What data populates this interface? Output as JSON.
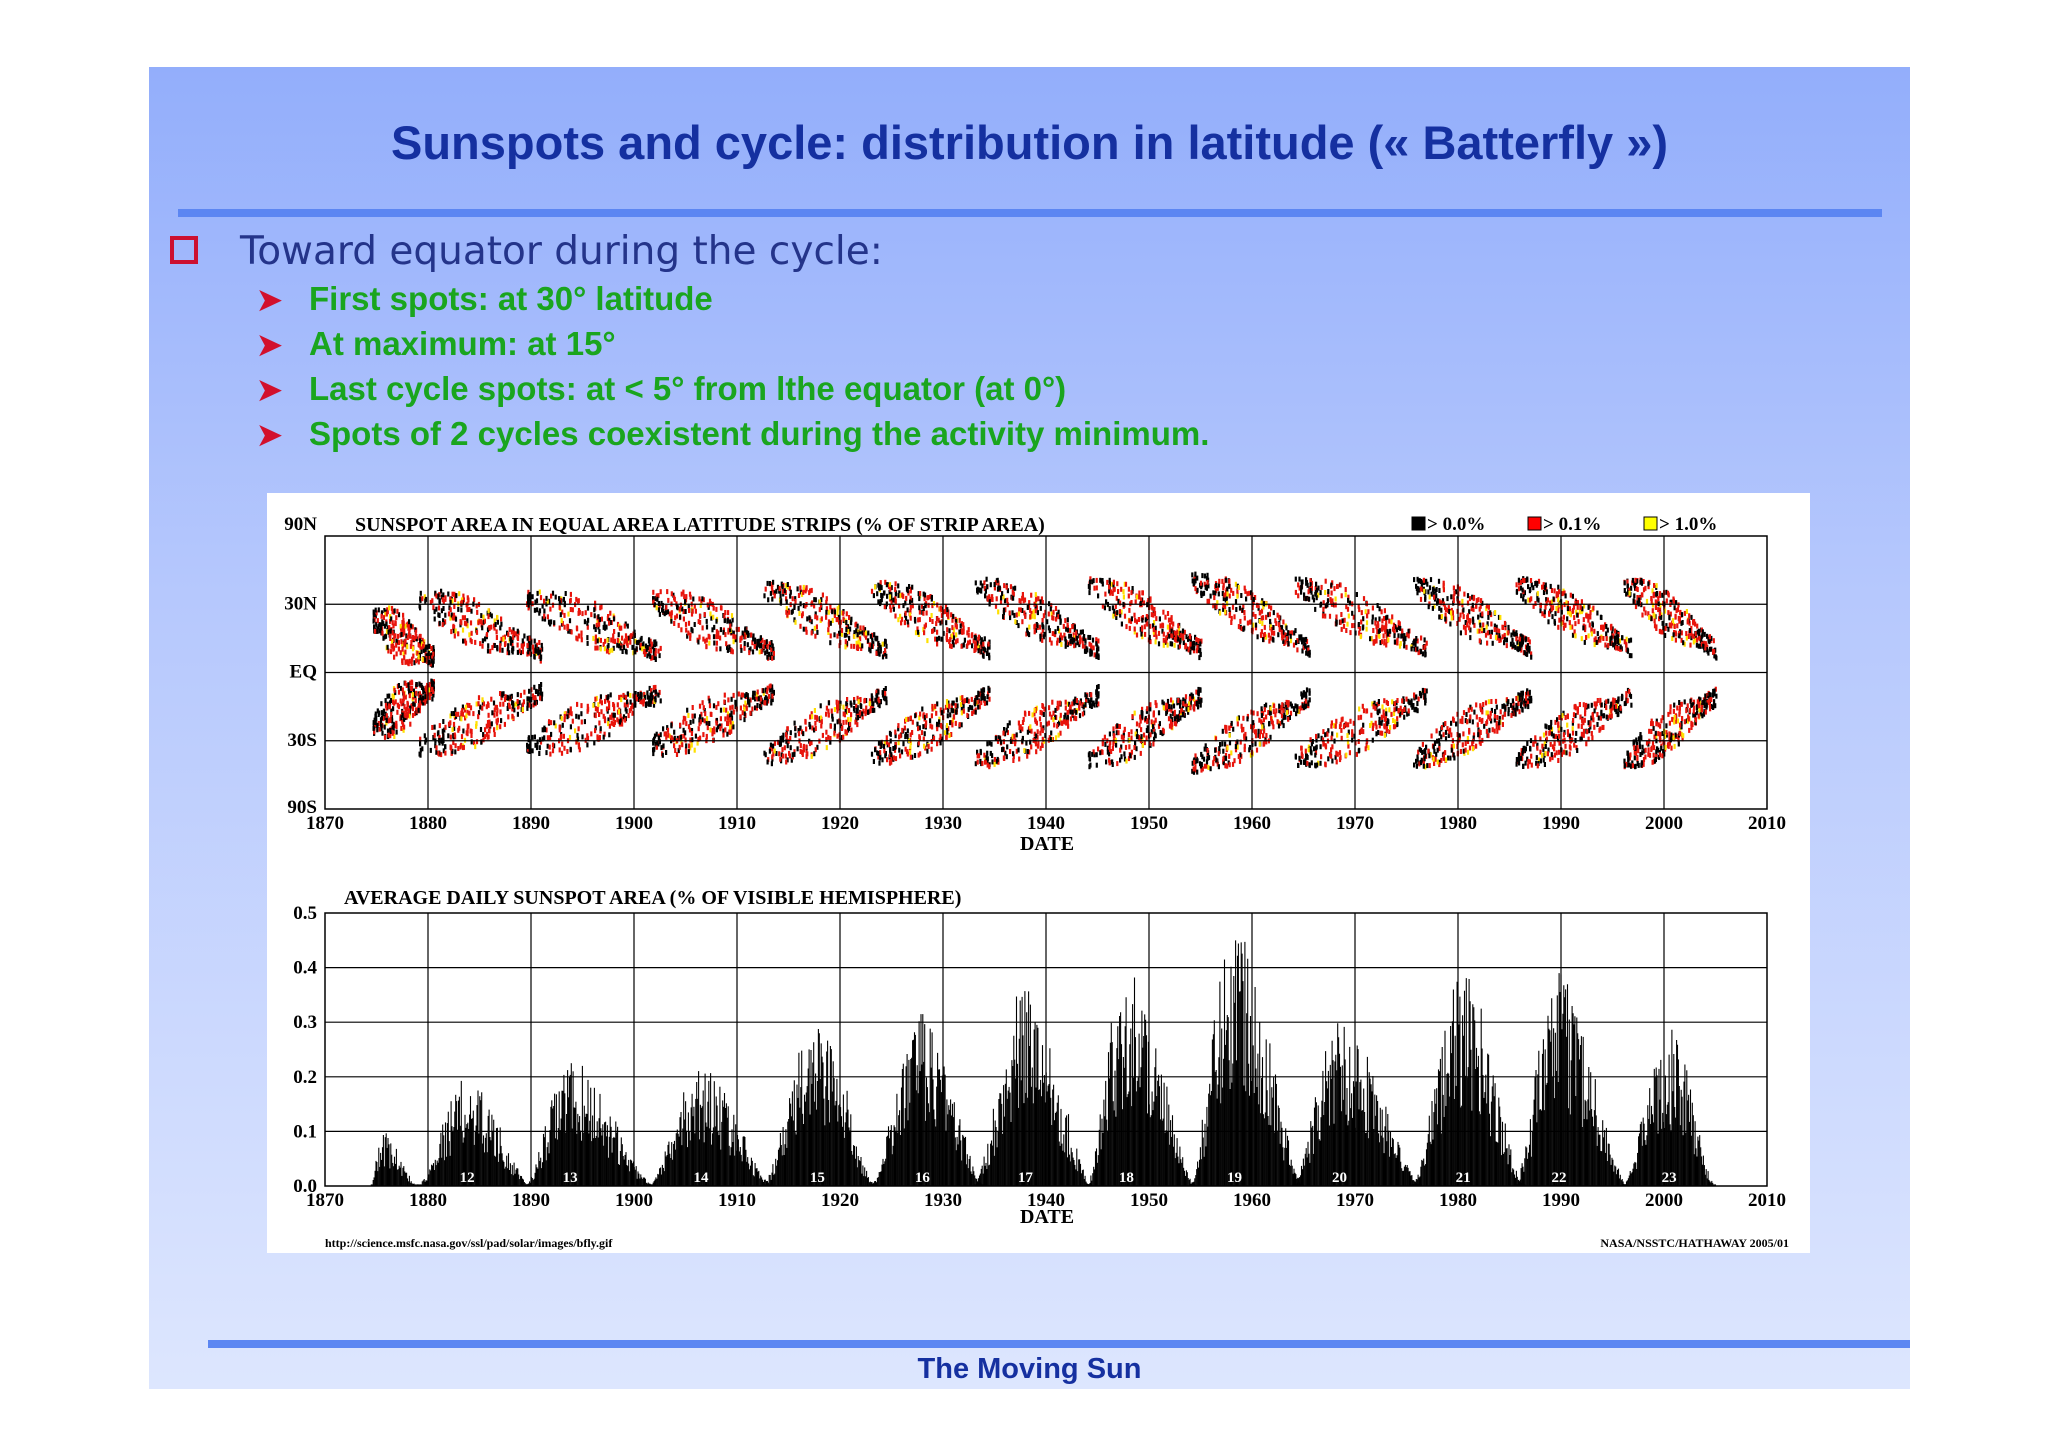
{
  "slide": {
    "title": "Sunspots and cycle: distribution in latitude (« Batterfly »)",
    "bullet": "Toward equator during the cycle:",
    "sub_bullets": [
      "First spots:  at  30° latitude",
      "At maximum: at 15°",
      "Last cycle spots:  at < 5° from lthe equator (at 0°)",
      "Spots of 2 cycles coexistent during the activity minimum."
    ],
    "footer": "The Moving Sun",
    "colors": {
      "title": "#1530a0",
      "sub_bullet": "#1aa51e",
      "bullet_marker": "#d2102c",
      "rule": "#5c86f2"
    }
  },
  "chart_data": [
    {
      "type": "heatmap",
      "title": "SUNSPOT AREA IN EQUAL AREA LATITUDE STRIPS (% OF STRIP AREA)",
      "xlabel": "DATE",
      "xlim": [
        1870,
        2010
      ],
      "x_ticks": [
        "1870",
        "1880",
        "1890",
        "1900",
        "1910",
        "1920",
        "1930",
        "1940",
        "1950",
        "1960",
        "1970",
        "1980",
        "1990",
        "2000",
        "2010"
      ],
      "y_ticks": [
        "90N",
        "30N",
        "EQ",
        "30S",
        "90S"
      ],
      "legend": [
        {
          "label": "> 0.0%",
          "color": "#000000"
        },
        {
          "label": "> 0.1%",
          "color": "#ff0000"
        },
        {
          "label": "> 1.0%",
          "color": "#ffff00"
        }
      ],
      "legend_position": "top-right",
      "grid": true,
      "cycles": [
        {
          "start": 1874.5,
          "end": 1880.5,
          "peak_lat": 20
        },
        {
          "start": 1879.0,
          "end": 1891.0,
          "peak_lat": 30
        },
        {
          "start": 1889.5,
          "end": 1902.5,
          "peak_lat": 30
        },
        {
          "start": 1901.5,
          "end": 1913.5,
          "peak_lat": 30
        },
        {
          "start": 1912.5,
          "end": 1924.5,
          "peak_lat": 35
        },
        {
          "start": 1923.0,
          "end": 1934.5,
          "peak_lat": 35
        },
        {
          "start": 1933.0,
          "end": 1945.0,
          "peak_lat": 37
        },
        {
          "start": 1944.0,
          "end": 1955.0,
          "peak_lat": 37
        },
        {
          "start": 1954.0,
          "end": 1965.5,
          "peak_lat": 40
        },
        {
          "start": 1964.0,
          "end": 1977.0,
          "peak_lat": 37
        },
        {
          "start": 1975.5,
          "end": 1987.0,
          "peak_lat": 37
        },
        {
          "start": 1985.5,
          "end": 1997.0,
          "peak_lat": 37
        },
        {
          "start": 1996.0,
          "end": 2005.0,
          "peak_lat": 37
        }
      ]
    },
    {
      "type": "bar",
      "title": "AVERAGE DAILY SUNSPOT AREA (% OF VISIBLE HEMISPHERE)",
      "xlabel": "DATE",
      "xlim": [
        1870,
        2010
      ],
      "ylim": [
        0.0,
        0.5
      ],
      "x_ticks": [
        "1870",
        "1880",
        "1890",
        "1900",
        "1910",
        "1920",
        "1930",
        "1940",
        "1950",
        "1960",
        "1970",
        "1980",
        "1990",
        "2000",
        "2010"
      ],
      "y_ticks": [
        "0.0",
        "0.1",
        "0.2",
        "0.3",
        "0.4",
        "0.5"
      ],
      "grid": true,
      "cycles": [
        {
          "label": "",
          "start": 1874.5,
          "max_year": 1875.5,
          "end": 1879.0,
          "peak": 0.1
        },
        {
          "label": "12",
          "start": 1879.0,
          "max_year": 1883.8,
          "end": 1890.0,
          "peak": 0.2
        },
        {
          "label": "13",
          "start": 1889.5,
          "max_year": 1893.8,
          "end": 1902.0,
          "peak": 0.23
        },
        {
          "label": "14",
          "start": 1901.5,
          "max_year": 1906.5,
          "end": 1913.5,
          "peak": 0.22
        },
        {
          "label": "15",
          "start": 1912.5,
          "max_year": 1917.8,
          "end": 1923.5,
          "peak": 0.31
        },
        {
          "label": "16",
          "start": 1923.0,
          "max_year": 1928.0,
          "end": 1934.0,
          "peak": 0.32
        },
        {
          "label": "17",
          "start": 1933.0,
          "max_year": 1938.0,
          "end": 1944.5,
          "peak": 0.37
        },
        {
          "label": "18",
          "start": 1944.0,
          "max_year": 1947.8,
          "end": 1954.5,
          "peak": 0.41
        },
        {
          "label": "19",
          "start": 1954.0,
          "max_year": 1958.3,
          "end": 1965.0,
          "peak": 0.5
        },
        {
          "label": "20",
          "start": 1964.0,
          "max_year": 1968.5,
          "end": 1976.5,
          "peak": 0.31
        },
        {
          "label": "21",
          "start": 1975.5,
          "max_year": 1980.5,
          "end": 1986.5,
          "peak": 0.39
        },
        {
          "label": "22",
          "start": 1985.5,
          "max_year": 1989.8,
          "end": 1996.5,
          "peak": 0.39
        },
        {
          "label": "23",
          "start": 1996.0,
          "max_year": 2000.5,
          "end": 2005.0,
          "peak": 0.29
        }
      ]
    }
  ],
  "credits": {
    "url": "http://science.msfc.nasa.gov/ssl/pad/solar/images/bfly.gif",
    "source": "NASA/NSSTC/HATHAWAY  2005/01"
  }
}
